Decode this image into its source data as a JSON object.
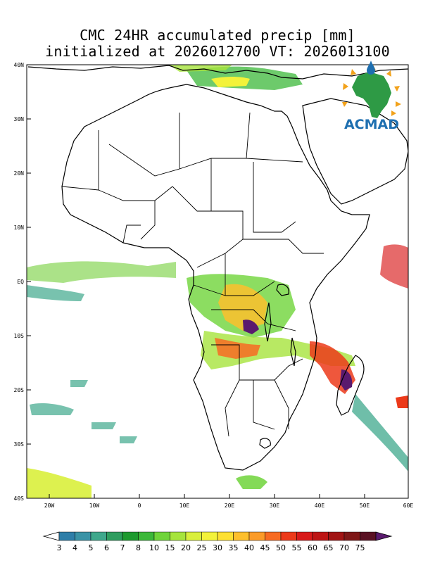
{
  "title": {
    "line1": "CMC 24HR accumulated precip [mm]",
    "line2": "initialized at 2026012700 VT: 2026013100"
  },
  "logo": {
    "text": "ACMAD",
    "colors": {
      "text": "#1e6fb0",
      "africa": "#2e9a45",
      "rays": "#f2a21b"
    }
  },
  "map": {
    "lat_labels": [
      "40N",
      "30N",
      "20N",
      "10N",
      "EQ",
      "10S",
      "20S",
      "30S",
      "40S"
    ],
    "lon_labels": [
      "20W",
      "10W",
      "0",
      "10E",
      "20E",
      "30E",
      "40E",
      "50E",
      "60E"
    ],
    "extent": {
      "lon": [
        -25,
        60
      ],
      "lat": [
        -40,
        40
      ]
    }
  },
  "colorbar": {
    "labels": [
      "3",
      "4",
      "5",
      "6",
      "7",
      "8",
      "10",
      "15",
      "20",
      "25",
      "30",
      "35",
      "40",
      "45",
      "50",
      "55",
      "60",
      "65",
      "70",
      "75"
    ],
    "colors": [
      "#2e7ea8",
      "#3a93a6",
      "#3fa88c",
      "#2f9d5f",
      "#1e9a2f",
      "#3cb83a",
      "#6fd43a",
      "#a6e43c",
      "#d9ef3c",
      "#f3f23a",
      "#fde033",
      "#fdbf2d",
      "#fb9b28",
      "#f76b22",
      "#ec3a1a",
      "#d81a1a",
      "#bd1515",
      "#a11414",
      "#7e1717",
      "#5a1224"
    ],
    "over_color": "#5a1a6e",
    "under_color": "#ffffff"
  }
}
